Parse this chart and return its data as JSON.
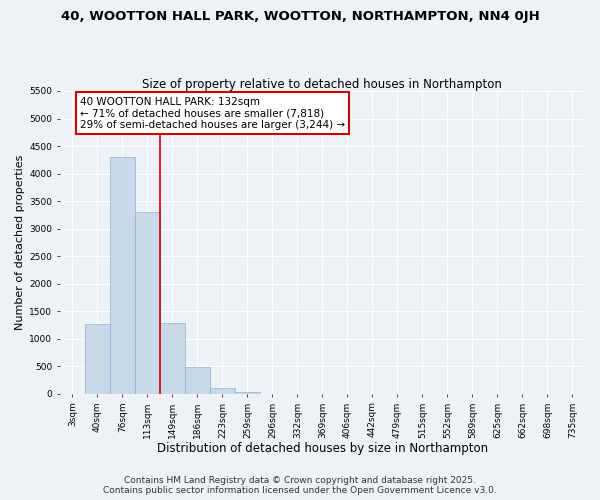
{
  "title": "40, WOOTTON HALL PARK, WOOTTON, NORTHAMPTON, NN4 0JH",
  "subtitle": "Size of property relative to detached houses in Northampton",
  "xlabel": "Distribution of detached houses by size in Northampton",
  "ylabel": "Number of detached properties",
  "bin_labels": [
    "3sqm",
    "40sqm",
    "76sqm",
    "113sqm",
    "149sqm",
    "186sqm",
    "223sqm",
    "259sqm",
    "296sqm",
    "332sqm",
    "369sqm",
    "406sqm",
    "442sqm",
    "479sqm",
    "515sqm",
    "552sqm",
    "589sqm",
    "625sqm",
    "662sqm",
    "698sqm",
    "735sqm"
  ],
  "bar_values": [
    0,
    1260,
    4300,
    3300,
    1280,
    480,
    100,
    30,
    5,
    0,
    0,
    0,
    0,
    0,
    0,
    0,
    0,
    0,
    0,
    0,
    0
  ],
  "bar_color": "#c9d9ea",
  "bar_edge_color": "#8ab4d4",
  "background_color": "#eef2f7",
  "grid_color": "#ffffff",
  "red_line_x": 3.5,
  "annotation_text": "40 WOOTTON HALL PARK: 132sqm\n← 71% of detached houses are smaller (7,818)\n29% of semi-detached houses are larger (3,244) →",
  "annotation_box_color": "#ffffff",
  "annotation_box_edge": "#cc0000",
  "ylim": [
    0,
    5500
  ],
  "yticks": [
    0,
    500,
    1000,
    1500,
    2000,
    2500,
    3000,
    3500,
    4000,
    4500,
    5000,
    5500
  ],
  "footnote": "Contains HM Land Registry data © Crown copyright and database right 2025.\nContains public sector information licensed under the Open Government Licence v3.0.",
  "title_fontsize": 9.5,
  "subtitle_fontsize": 8.5,
  "xlabel_fontsize": 8.5,
  "ylabel_fontsize": 8,
  "tick_fontsize": 6.5,
  "annotation_fontsize": 7.5,
  "footnote_fontsize": 6.5
}
